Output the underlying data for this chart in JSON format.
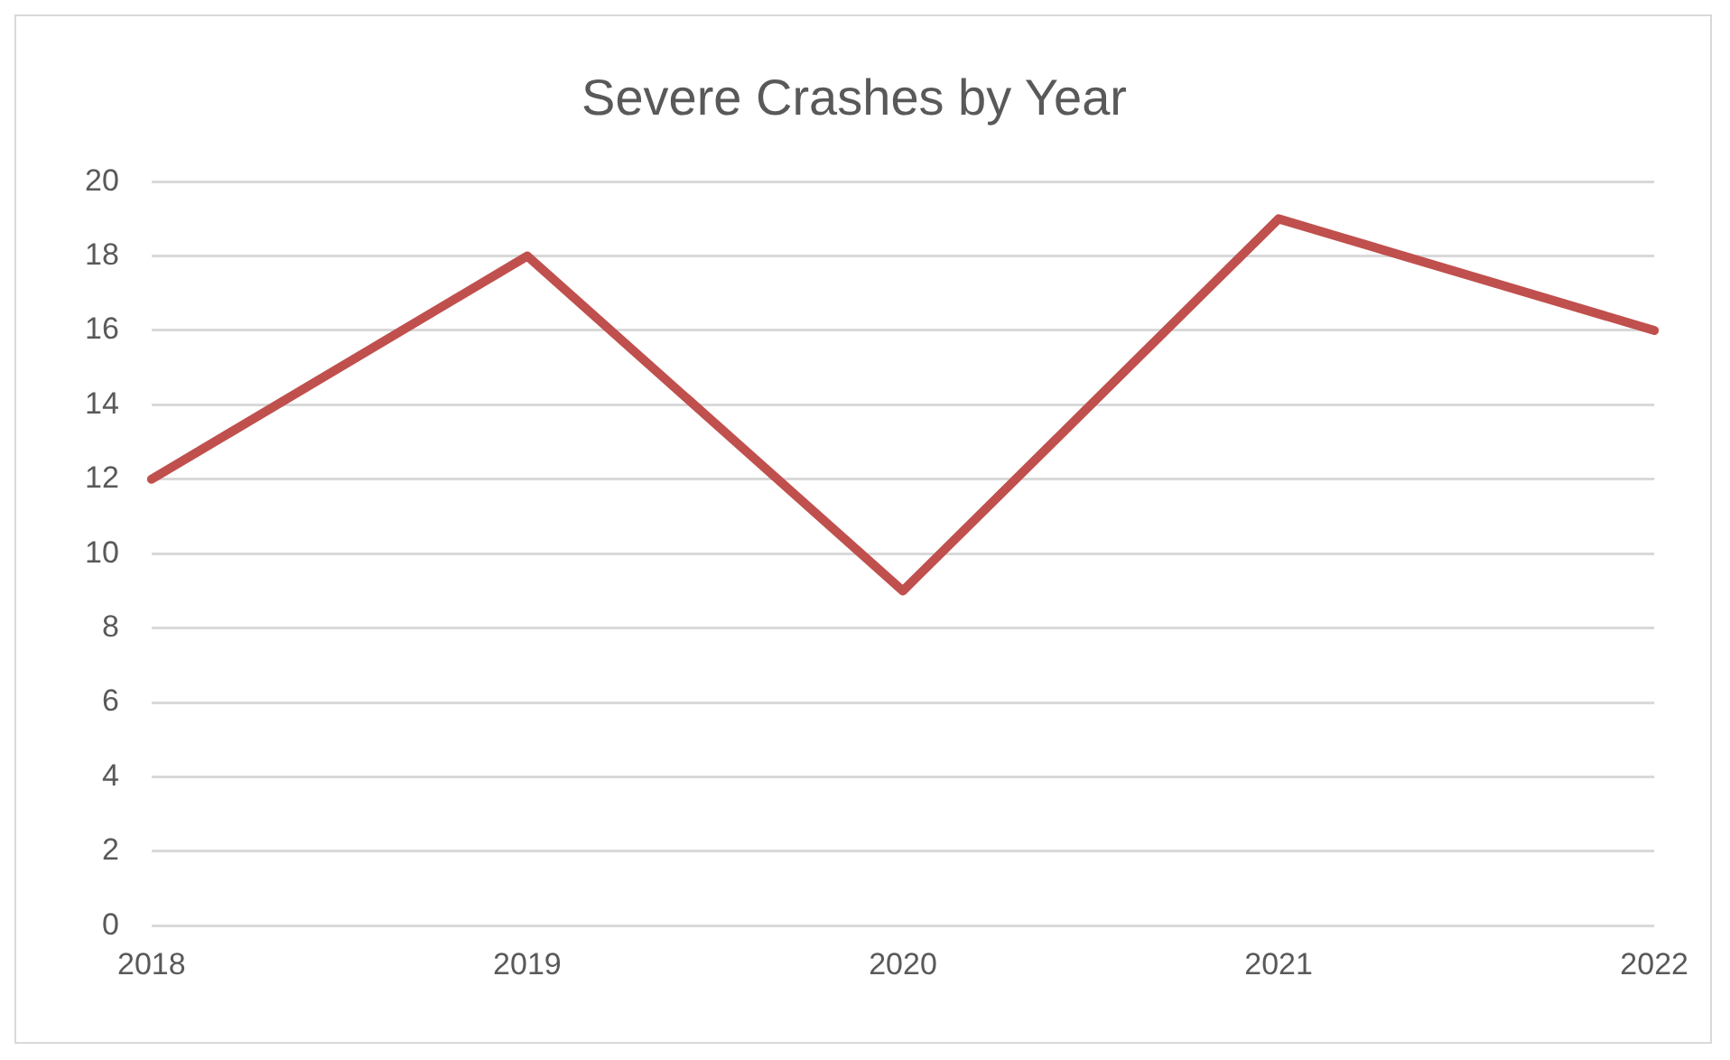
{
  "chart_data": {
    "type": "line",
    "title": "Severe Crashes by Year",
    "categories": [
      "2018",
      "2019",
      "2020",
      "2021",
      "2022"
    ],
    "series": [
      {
        "color": "#c0504d",
        "values": [
          12,
          18,
          9,
          19,
          16
        ]
      }
    ],
    "ylim": [
      0,
      20
    ],
    "yticks": [
      0,
      2,
      4,
      6,
      8,
      10,
      12,
      14,
      16,
      18,
      20
    ],
    "grid": "y",
    "legend": false,
    "marker": "none",
    "line_style": "solid"
  }
}
